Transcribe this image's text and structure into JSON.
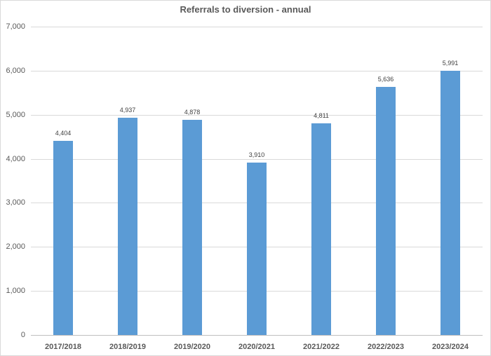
{
  "chart_data": {
    "type": "bar",
    "title": "Referrals to diversion - annual",
    "xlabel": "",
    "ylabel": "",
    "categories": [
      "2017/2018",
      "2018/2019",
      "2019/2020",
      "2020/2021",
      "2021/2022",
      "2022/2023",
      "2023/2024"
    ],
    "values": [
      4404,
      4937,
      4878,
      3910,
      4811,
      5636,
      5991
    ],
    "data_labels": [
      "4,404",
      "4,937",
      "4,878",
      "3,910",
      "4,811",
      "5,636",
      "5,991"
    ],
    "ylim": [
      0,
      7000
    ],
    "yticks": [
      0,
      1000,
      2000,
      3000,
      4000,
      5000,
      6000,
      7000
    ],
    "ytick_labels": [
      "0",
      "1,000",
      "2,000",
      "3,000",
      "4,000",
      "5,000",
      "6,000",
      "7,000"
    ],
    "grid": true,
    "legend": null,
    "bar_color": "#5b9bd5"
  }
}
